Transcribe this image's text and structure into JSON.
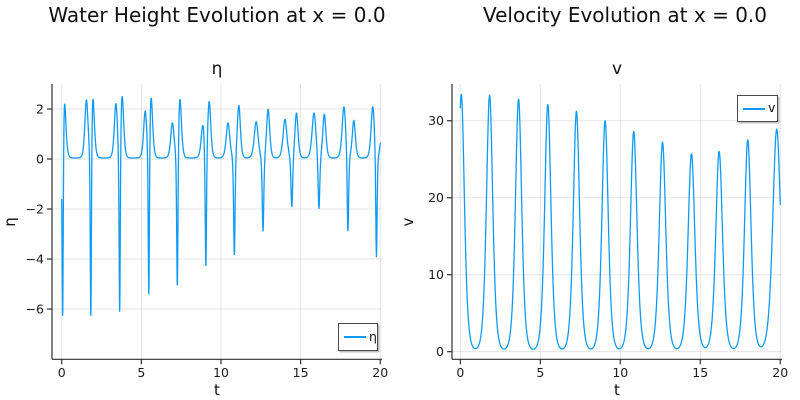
{
  "colors": {
    "series": "#0f9bf5",
    "axis": "#2f2f33",
    "grid": "rgba(0,0,0,0.10)",
    "text": "#1c1c1c",
    "legend_border": "#4a4a4a",
    "background": "#ffffff"
  },
  "chart_data": [
    {
      "type": "line",
      "panel": "left",
      "main_title": "Water Height Evolution at x = 0.0",
      "title": "η",
      "xlabel": "t",
      "ylabel": "η",
      "legend": {
        "label": "η",
        "position": "bottom-right"
      },
      "xlim": [
        -0.61,
        20.11
      ],
      "ylim": [
        -8.01,
        3.0
      ],
      "xticks": [
        0,
        5,
        10,
        15,
        20
      ],
      "xtick_labels": [
        "0",
        "5",
        "10",
        "15",
        "20"
      ],
      "yticks": [
        2,
        0,
        -2,
        -4,
        -6
      ],
      "ytick_labels": [
        "2",
        "0",
        "−2",
        "−4",
        "−6"
      ],
      "grid": true,
      "key_extrema": {
        "event_times": [
          0.06,
          1.83,
          3.64,
          5.47,
          7.26,
          9.05,
          10.84,
          12.64,
          14.45,
          16.15,
          17.97,
          19.76
        ],
        "pre_peaks": [
          null,
          2.3,
          2.15,
          1.85,
          1.4,
          1.3,
          1.4,
          1.45,
          1.55,
          1.8,
          2.05,
          2.05
        ],
        "spike_minima": [
          -7.75,
          -7.6,
          -7.15,
          -6.55,
          -5.85,
          -4.95,
          -4.0,
          -3.0,
          -2.05,
          -2.2,
          -3.2,
          -4.25
        ],
        "post_peaks": [
          2.45,
          2.5,
          2.5,
          2.45,
          2.4,
          2.25,
          2.1,
          1.95,
          1.8,
          1.75,
          1.5,
          null
        ],
        "baseline": 0.04,
        "end_value": 0.4
      },
      "series_model": {
        "kind": "sum_of_sech2_pulses",
        "t_range": [
          0,
          20
        ],
        "samples": 2600,
        "baseline": 0.04,
        "pulses": [
          [
            0.06,
            -7.75,
            0.05
          ],
          [
            0.16,
            2.45,
            0.13
          ],
          [
            1.55,
            2.3,
            0.13
          ],
          [
            1.83,
            -7.6,
            0.05
          ],
          [
            1.95,
            2.5,
            0.13
          ],
          [
            3.4,
            2.15,
            0.13
          ],
          [
            3.64,
            -7.15,
            0.05
          ],
          [
            3.79,
            2.5,
            0.13
          ],
          [
            5.24,
            1.85,
            0.13
          ],
          [
            5.47,
            -6.55,
            0.05
          ],
          [
            5.61,
            2.45,
            0.13
          ],
          [
            6.95,
            1.4,
            0.14
          ],
          [
            7.26,
            -5.85,
            0.055
          ],
          [
            7.42,
            2.4,
            0.13
          ],
          [
            8.86,
            1.3,
            0.14
          ],
          [
            9.05,
            -4.95,
            0.055
          ],
          [
            9.26,
            2.25,
            0.13
          ],
          [
            10.44,
            1.4,
            0.15
          ],
          [
            10.84,
            -4.0,
            0.06
          ],
          [
            11.12,
            2.1,
            0.13
          ],
          [
            12.21,
            1.45,
            0.16
          ],
          [
            12.64,
            -3.0,
            0.065
          ],
          [
            12.96,
            1.95,
            0.13
          ],
          [
            14.02,
            1.55,
            0.16
          ],
          [
            14.45,
            -2.05,
            0.07
          ],
          [
            14.74,
            1.8,
            0.13
          ],
          [
            15.84,
            1.8,
            0.16
          ],
          [
            16.15,
            -2.2,
            0.07
          ],
          [
            16.49,
            1.75,
            0.13
          ],
          [
            17.72,
            2.05,
            0.15
          ],
          [
            17.97,
            -3.2,
            0.06
          ],
          [
            18.34,
            1.5,
            0.13
          ],
          [
            19.53,
            2.05,
            0.14
          ],
          [
            19.76,
            -4.25,
            0.055
          ],
          [
            20.1,
            1.0,
            0.13
          ]
        ]
      }
    },
    {
      "type": "line",
      "panel": "right",
      "main_title": "Velocity Evolution at x = 0.0",
      "title": "v",
      "xlabel": "t",
      "ylabel": "v",
      "legend": {
        "label": "v",
        "position": "top-right"
      },
      "xlim": [
        -0.52,
        20.11
      ],
      "ylim": [
        -0.99,
        34.77
      ],
      "xticks": [
        0,
        5,
        10,
        15,
        20
      ],
      "xtick_labels": [
        "0",
        "5",
        "10",
        "15",
        "20"
      ],
      "yticks": [
        0,
        10,
        20,
        30
      ],
      "ytick_labels": [
        "0",
        "10",
        "20",
        "30"
      ],
      "grid": true,
      "key_extrema": {
        "peak_times": [
          0.06,
          1.83,
          3.64,
          5.47,
          7.26,
          9.05,
          10.84,
          12.64,
          14.45,
          16.18,
          17.97,
          19.78
        ],
        "peak_values": [
          33.4,
          33.3,
          32.8,
          32.1,
          31.2,
          30.0,
          28.6,
          27.2,
          25.7,
          26.0,
          27.5,
          28.9
        ],
        "valley_value": 0.15,
        "baseline": 0.1,
        "end_value": 21.0
      },
      "series_model": {
        "kind": "sum_of_sech2_pulses",
        "t_range": [
          0,
          20
        ],
        "samples": 2600,
        "baseline": 0.1,
        "pulses": [
          [
            0.06,
            33.3,
            0.26
          ],
          [
            1.83,
            33.2,
            0.26
          ],
          [
            3.64,
            32.7,
            0.26
          ],
          [
            5.47,
            32.0,
            0.26
          ],
          [
            7.26,
            31.1,
            0.26
          ],
          [
            9.05,
            29.9,
            0.26
          ],
          [
            10.84,
            28.5,
            0.27
          ],
          [
            12.64,
            27.1,
            0.27
          ],
          [
            14.45,
            25.6,
            0.28
          ],
          [
            16.18,
            25.9,
            0.28
          ],
          [
            17.97,
            27.4,
            0.27
          ],
          [
            19.78,
            28.8,
            0.33
          ]
        ]
      }
    }
  ]
}
